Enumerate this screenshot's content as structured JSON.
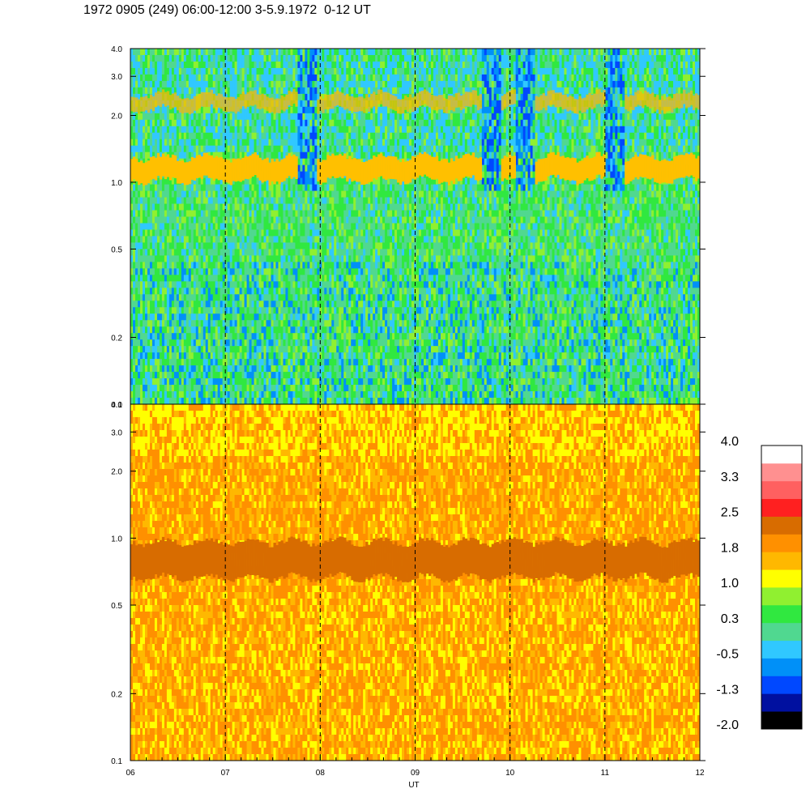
{
  "title": "1972 0905 (249) 06:00-12:00 3-5.9.1972  0-12 UT",
  "chart_data": [
    {
      "type": "heatmap",
      "panel": "top",
      "title": "",
      "xlabel": "",
      "ylabel": "",
      "y_scale": "log",
      "ylim": [
        0.1,
        4.0
      ],
      "y_ticks": [
        "4.0",
        "3.0",
        "2.0",
        "1.0",
        "0.5",
        "0.2",
        "0.1"
      ],
      "y_tick_values": [
        4.0,
        3.0,
        2.0,
        1.0,
        0.5,
        0.2,
        0.1
      ],
      "dominant_level": "green/cyan (about 0.3)",
      "bands": [
        {
          "feature": "yellow/orange band",
          "y": 1.15,
          "level": 1.4
        },
        {
          "feature": "orange band",
          "y": 2.3,
          "level": 1.0
        }
      ],
      "dropouts_x": [
        7.85,
        9.8,
        10.15,
        11.1
      ]
    },
    {
      "type": "heatmap",
      "panel": "bottom",
      "title": "",
      "xlabel": "UT",
      "ylabel": "",
      "y_scale": "log",
      "ylim": [
        0.1,
        4.0
      ],
      "y_ticks": [
        "4.0",
        "3.0",
        "2.0",
        "1.0",
        "0.5",
        "0.2",
        "0.1"
      ],
      "y_tick_values": [
        4.0,
        3.0,
        2.0,
        1.0,
        0.5,
        0.2,
        0.1
      ],
      "dominant_level": "orange (about 1.6)",
      "bands": [
        {
          "feature": "dark orange band",
          "y": 0.8,
          "level": 2.2
        }
      ]
    }
  ],
  "x_axis": {
    "label": "UT",
    "xlim": [
      6,
      12
    ],
    "ticks": [
      "06",
      "07",
      "08",
      "09",
      "10",
      "11",
      "12"
    ],
    "tick_values": [
      6,
      7,
      8,
      9,
      10,
      11,
      12
    ]
  },
  "colorbar": {
    "labels": [
      "4.0",
      "3.3",
      "2.5",
      "1.8",
      "1.0",
      "0.3",
      "-0.5",
      "-1.3",
      "-2.0"
    ],
    "colors": [
      "#000000",
      "#0010a0",
      "#0048ff",
      "#0090f8",
      "#30c8ff",
      "#50d890",
      "#30e840",
      "#90f030",
      "#ffff00",
      "#ffb800",
      "#ff9000",
      "#d86c00",
      "#ff2020",
      "#ff6060",
      "#ff9090",
      "#ffffff"
    ]
  }
}
